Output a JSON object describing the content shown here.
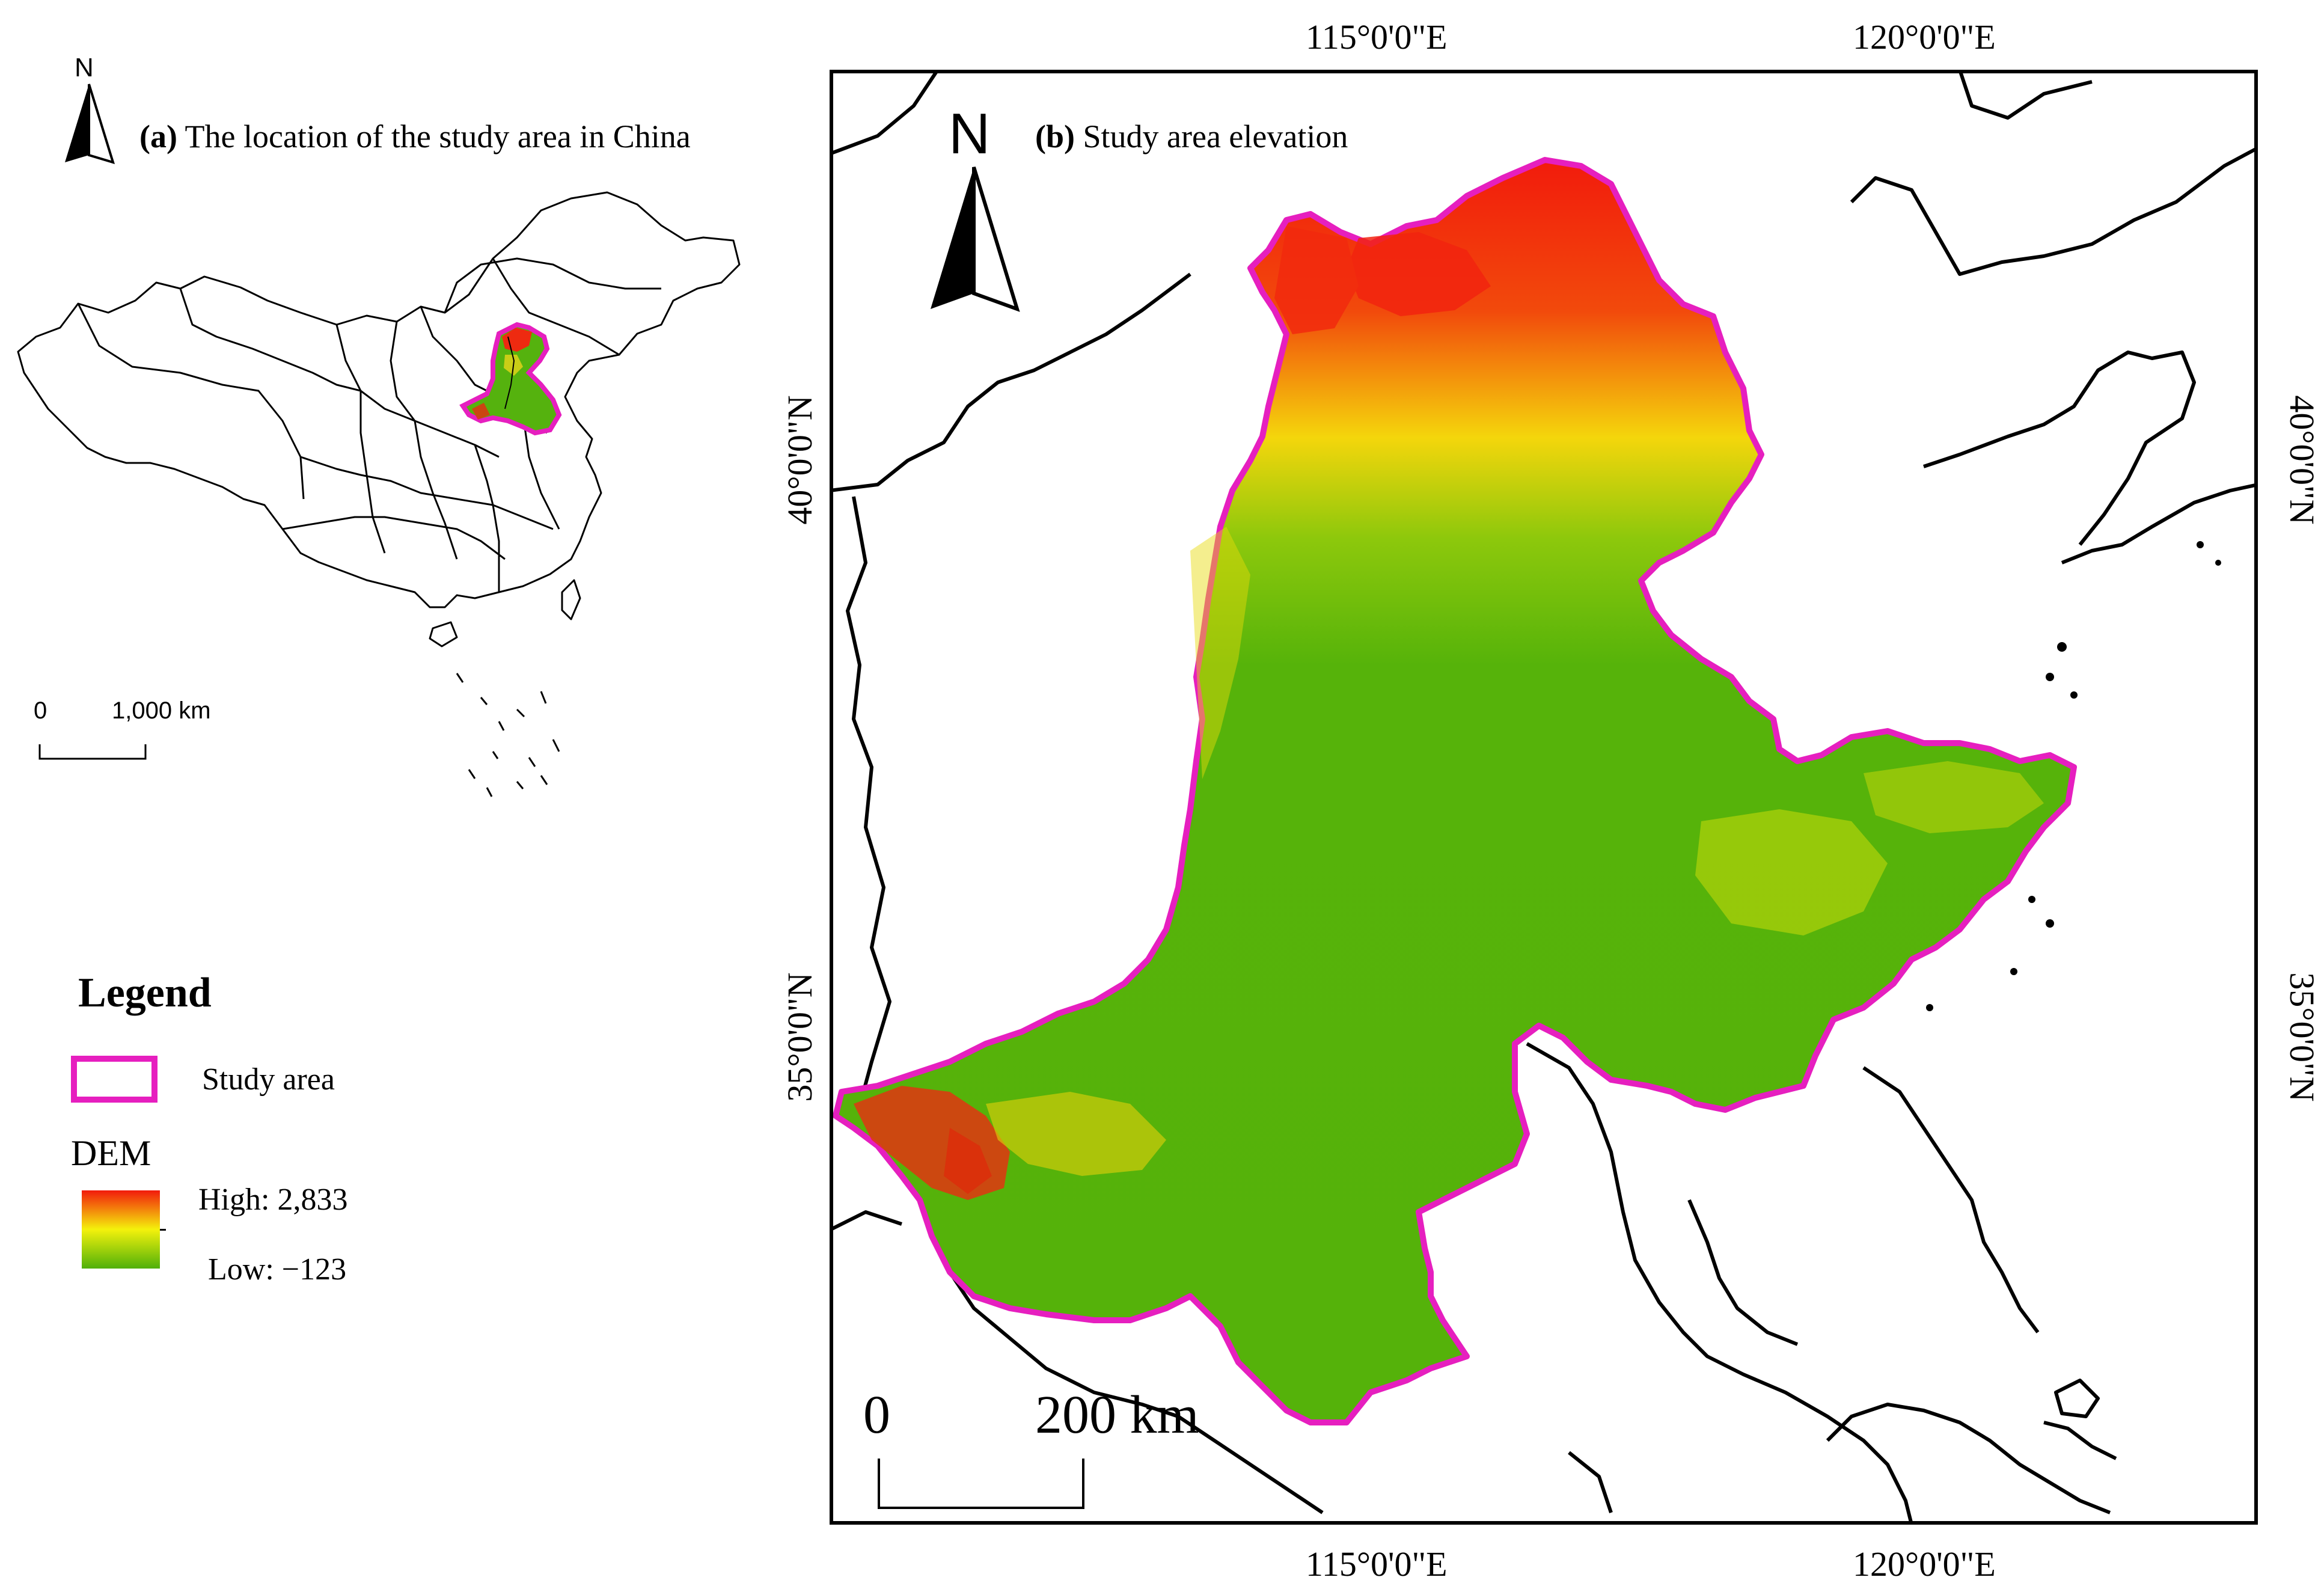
{
  "panel_a": {
    "title_prefix": "(a)",
    "title_text": "The location of the study area in China",
    "north_label": "N",
    "scale_start": "0",
    "scale_end": "1,000 km"
  },
  "panel_b": {
    "title_prefix": "(b)",
    "title_text": "Study area elevation",
    "north_label": "N",
    "scale_start": "0",
    "scale_end": "200 km",
    "lon_labels": [
      "115°0'0\"E",
      "120°0'0\"E"
    ],
    "lat_labels": [
      "40°0'0\"N",
      "35°0'0\"N"
    ]
  },
  "legend": {
    "title": "Legend",
    "study_area_label": "Study area",
    "dem_label": "DEM",
    "high_label": "High: 2,833",
    "low_label": "Low: −123"
  },
  "colors": {
    "study_area_outline": "#e61fbf",
    "dem_high": "#f21b0c",
    "dem_mid": "#f4f20c",
    "dem_low": "#4fb00a",
    "boundary": "#000000"
  },
  "icons": [
    "north-arrow-icon"
  ]
}
